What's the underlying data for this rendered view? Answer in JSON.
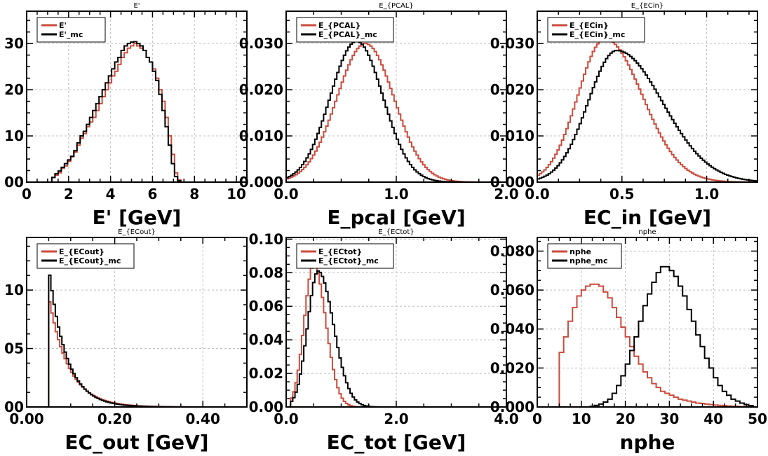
{
  "colors": {
    "data": "#cc4b3c",
    "mc": "#000000",
    "grid": "#bfbfbf",
    "frame": "#000000"
  },
  "chart_data": [
    {
      "type": "histogram",
      "title": "E'",
      "xlabel": "E' [GeV]",
      "xlim": [
        0,
        10.5
      ],
      "ylim": [
        0,
        37
      ],
      "xticks": [
        0,
        2,
        4,
        6,
        8,
        10
      ],
      "xtick_labels": [
        "0",
        "2",
        "4",
        "6",
        "8",
        "10"
      ],
      "yticks": [
        0,
        10,
        20,
        30
      ],
      "ytick_labels": [
        "00",
        "10",
        "20",
        "30"
      ],
      "nbins": 70,
      "legend": [
        "E'",
        "E'_mc"
      ],
      "series": [
        {
          "name": "E'",
          "color": "#cc4b3c",
          "values": [
            0,
            0,
            0,
            0,
            0,
            0,
            0,
            0,
            1,
            1.5,
            2,
            3,
            3.5,
            4.5,
            5.5,
            6.5,
            8,
            9.5,
            10.5,
            12,
            13,
            14,
            15.5,
            17,
            18.5,
            20,
            21.5,
            23,
            24,
            25.5,
            27,
            28,
            29,
            29.5,
            30,
            29.5,
            29,
            28.5,
            27,
            26,
            24.5,
            22.5,
            20,
            17.5,
            14,
            10,
            6,
            2,
            0.5,
            0,
            0,
            0,
            0,
            0,
            0,
            0,
            0,
            0,
            0,
            0,
            0,
            0,
            0,
            0,
            0,
            0,
            0,
            0,
            0,
            0
          ]
        },
        {
          "name": "E'_mc",
          "color": "#000000",
          "values": [
            0,
            0,
            0,
            0,
            0,
            0,
            0,
            0,
            1,
            1.8,
            2.4,
            3.2,
            4,
            4.8,
            5.6,
            6.8,
            8.5,
            10,
            11,
            12.5,
            14,
            15.5,
            17,
            18.5,
            20,
            21.5,
            23,
            24.5,
            26,
            27,
            28.5,
            29.5,
            30,
            30.3,
            30.4,
            30,
            29.5,
            28.5,
            27,
            26,
            24,
            22,
            19,
            15.5,
            12,
            8,
            4,
            1.2,
            0.3,
            0,
            0,
            0,
            0,
            0,
            0,
            0,
            0,
            0,
            0,
            0,
            0,
            0,
            0,
            0,
            0,
            0,
            0,
            0,
            0,
            0
          ]
        }
      ]
    },
    {
      "type": "histogram",
      "title": "E_{PCAL}",
      "xlabel": "E_pcal [GeV]",
      "xlim": [
        0,
        2.0
      ],
      "ylim": [
        0,
        0.037
      ],
      "xticks": [
        0,
        1.0,
        2.0
      ],
      "xtick_labels": [
        "0.0",
        "1.0",
        "2.0"
      ],
      "yticks": [
        0,
        0.01,
        0.02,
        0.03
      ],
      "ytick_labels": [
        "0.000",
        "0.010",
        "0.020",
        "0.030"
      ],
      "nbins": 100,
      "legend": [
        "E_{PCAL}",
        "E_{PCAL}_mc"
      ],
      "series": [
        {
          "name": "E_{PCAL}",
          "color": "#cc4b3c",
          "mu": 0.72,
          "sigma": 0.26,
          "peak": 0.03,
          "xmin": 0.0
        },
        {
          "name": "E_{PCAL}_mc",
          "color": "#000000",
          "mu": 0.64,
          "sigma": 0.24,
          "peak": 0.0305,
          "xmin": 0.0
        }
      ]
    },
    {
      "type": "histogram",
      "title": "E_{ECin}",
      "xlabel": "EC_in [GeV]",
      "xlim": [
        0,
        1.3
      ],
      "ylim": [
        0,
        0.037
      ],
      "xticks": [
        0,
        0.5,
        1.0
      ],
      "xtick_labels": [
        "0.0",
        "0.5",
        "1.0"
      ],
      "yticks": [
        0,
        0.01,
        0.02,
        0.03
      ],
      "ytick_labels": [
        "0.000",
        "0.010",
        "0.020",
        "0.030"
      ],
      "nbins": 100,
      "legend": [
        "E_{ECin}",
        "E_{ECin}_mc"
      ],
      "series": [
        {
          "name": "E_{ECin}",
          "color": "#cc4b3c",
          "mu": 0.4,
          "sigma": 0.16,
          "sigma_r": 0.22,
          "peak": 0.031,
          "xmin": 0.0
        },
        {
          "name": "E_{ECin}_mc",
          "color": "#000000",
          "mu": 0.47,
          "sigma": 0.17,
          "sigma_r": 0.27,
          "peak": 0.0285,
          "xmin": 0.0
        }
      ]
    },
    {
      "type": "histogram",
      "title": "E_{ECout}",
      "xlabel": "EC_out [GeV]",
      "xlim": [
        0,
        0.5
      ],
      "ylim": [
        0,
        14.5
      ],
      "xticks": [
        0,
        0.2,
        0.4
      ],
      "xtick_labels": [
        "0.00",
        "0.20",
        "0.40"
      ],
      "yticks": [
        0,
        5,
        10
      ],
      "ytick_labels": [
        "00",
        "05",
        "10"
      ],
      "nbins": 100,
      "legend": [
        "E_{ECout}",
        "E_{ECout}_mc"
      ],
      "series": [
        {
          "name": "E_{ECout}",
          "color": "#cc4b3c",
          "start": 0.05,
          "peak": 9.5,
          "decay": 0.045
        },
        {
          "name": "E_{ECout}_mc",
          "color": "#000000",
          "start": 0.05,
          "peak": 12.0,
          "decay": 0.04
        }
      ]
    },
    {
      "type": "histogram",
      "title": "E_{ECtot}",
      "xlabel": "EC_tot [GeV]",
      "xlim": [
        0,
        4.0
      ],
      "ylim": [
        0,
        0.101
      ],
      "xticks": [
        0,
        2.0,
        4.0
      ],
      "xtick_labels": [
        "0.0",
        "2.0",
        "4.0"
      ],
      "yticks": [
        0,
        0.02,
        0.04,
        0.06,
        0.08,
        0.1
      ],
      "ytick_labels": [
        "0.00",
        "0.02",
        "0.04",
        "0.06",
        "0.08",
        "0.10"
      ],
      "nbins": 100,
      "legend": [
        "E_{ECtot}",
        "E_{ECtot}_mc"
      ],
      "series": [
        {
          "name": "E_{ECtot}",
          "color": "#cc4b3c",
          "mu": 0.5,
          "sigma": 0.17,
          "sigma_r": 0.22,
          "peak": 0.085,
          "xmin": 0.1
        },
        {
          "name": "E_{ECtot}_mc",
          "color": "#000000",
          "mu": 0.58,
          "sigma": 0.19,
          "sigma_r": 0.28,
          "peak": 0.081,
          "xmin": 0.1
        }
      ]
    },
    {
      "type": "histogram",
      "title": "nphe",
      "xlabel": "nphe",
      "xlim": [
        0,
        50
      ],
      "ylim": [
        0,
        0.087
      ],
      "xticks": [
        0,
        10,
        20,
        30,
        40,
        50
      ],
      "xtick_labels": [
        "0",
        "10",
        "20",
        "30",
        "40",
        "50"
      ],
      "yticks": [
        0,
        0.02,
        0.04,
        0.06,
        0.08
      ],
      "ytick_labels": [
        "0.000",
        "0.020",
        "0.040",
        "0.060",
        "0.080"
      ],
      "nbins": 50,
      "legend": [
        "nphe",
        "nphe_mc"
      ],
      "series": [
        {
          "name": "nphe",
          "color": "#cc4b3c",
          "values": [
            0,
            0,
            0,
            0,
            0,
            0.028,
            0.036,
            0.044,
            0.051,
            0.057,
            0.06,
            0.062,
            0.063,
            0.063,
            0.062,
            0.059,
            0.056,
            0.051,
            0.046,
            0.041,
            0.036,
            0.031,
            0.026,
            0.022,
            0.018,
            0.015,
            0.012,
            0.01,
            0.008,
            0.007,
            0.006,
            0.005,
            0.004,
            0.0035,
            0.003,
            0.0025,
            0.002,
            0.0018,
            0.0015,
            0.0012,
            0.001,
            0.0008,
            0.0007,
            0.0005,
            0.0004,
            0.0003,
            0.0002,
            0.0001,
            0.0001,
            0
          ]
        },
        {
          "name": "nphe_mc",
          "color": "#000000",
          "values": [
            0,
            0,
            0,
            0,
            0,
            0,
            0,
            0,
            0,
            0,
            0,
            0,
            0.0003,
            0.0008,
            0.0015,
            0.0025,
            0.004,
            0.007,
            0.011,
            0.016,
            0.022,
            0.029,
            0.036,
            0.044,
            0.052,
            0.058,
            0.064,
            0.069,
            0.072,
            0.072,
            0.07,
            0.067,
            0.062,
            0.057,
            0.05,
            0.044,
            0.037,
            0.031,
            0.025,
            0.02,
            0.015,
            0.011,
            0.008,
            0.006,
            0.004,
            0.003,
            0.002,
            0.0012,
            0.0007,
            0
          ]
        }
      ]
    }
  ]
}
